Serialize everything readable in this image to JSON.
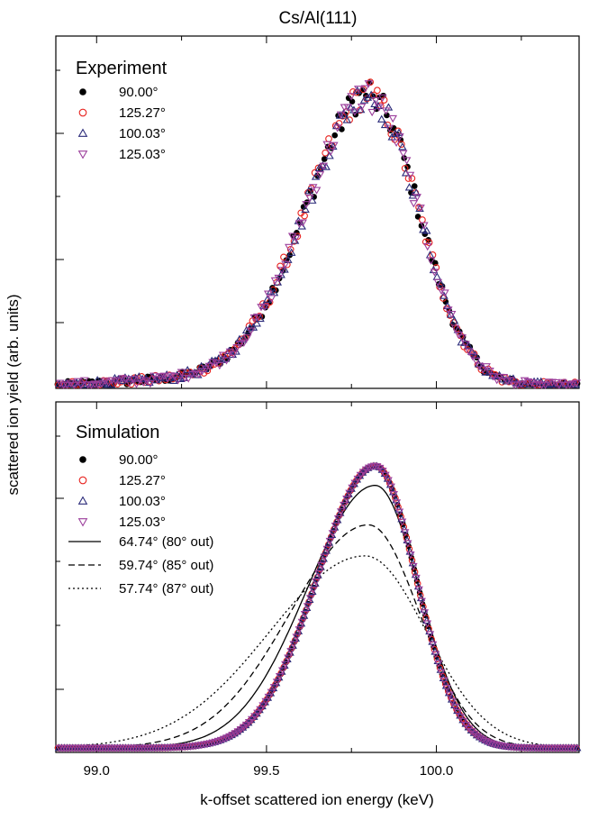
{
  "figure": {
    "title": "Cs/Al(111)",
    "ylabel": "scattered ion yield (arb. units)",
    "xlabel": "k-offset scattered ion energy (keV)"
  },
  "colors": {
    "black": "#000000",
    "red": "#e8231f",
    "navy": "#2b2b7a",
    "purple": "#9c3f9c"
  },
  "chart_data": [
    {
      "type": "scatter",
      "panel": "Experiment",
      "xlim": [
        98.88,
        100.42
      ],
      "ylim": [
        0,
        1.23
      ],
      "xticks": [
        99.0,
        99.5,
        100.0
      ],
      "grid": false,
      "legend": "top-left",
      "series": [
        {
          "name": "90.00°",
          "marker": "filled-circle",
          "color": "#000000"
        },
        {
          "name": "125.27°",
          "marker": "open-circle",
          "color": "#e8231f"
        },
        {
          "name": "100.03°",
          "marker": "open-triangle-up",
          "color": "#2b2b7a"
        },
        {
          "name": "125.03°",
          "marker": "open-triangle-down",
          "color": "#9c3f9c"
        }
      ],
      "peak_model": {
        "center": 99.81,
        "height": 1.0,
        "sigma_left": 0.19,
        "sigma_right": 0.14,
        "tail": 0.04
      }
    },
    {
      "type": "line",
      "panel": "Simulation",
      "xlim": [
        98.88,
        100.42
      ],
      "ylim": [
        0,
        1.23
      ],
      "xticks": [
        99.0,
        99.5,
        100.0
      ],
      "xticklabels": [
        "99.0",
        "99.5",
        "100.0"
      ],
      "grid": false,
      "legend": "top-left",
      "series": [
        {
          "name": "90.00°",
          "marker": "filled-circle",
          "color": "#000000",
          "center": 99.82,
          "height": 1.0,
          "sigma_left": 0.17,
          "sigma_right": 0.12
        },
        {
          "name": "125.27°",
          "marker": "open-circle",
          "color": "#e8231f",
          "center": 99.82,
          "height": 1.0,
          "sigma_left": 0.17,
          "sigma_right": 0.12
        },
        {
          "name": "100.03°",
          "marker": "open-triangle-up",
          "color": "#2b2b7a",
          "center": 99.82,
          "height": 1.0,
          "sigma_left": 0.17,
          "sigma_right": 0.12
        },
        {
          "name": "125.03°",
          "marker": "open-triangle-down",
          "color": "#9c3f9c",
          "center": 99.82,
          "height": 1.0,
          "sigma_left": 0.17,
          "sigma_right": 0.12
        },
        {
          "name": "64.74° (80° out)",
          "line": "solid",
          "color": "#000000",
          "center": 99.82,
          "height": 0.93,
          "sigma_left": 0.2,
          "sigma_right": 0.13
        },
        {
          "name": "59.74° (85° out)",
          "line": "dashed",
          "color": "#000000",
          "center": 99.8,
          "height": 0.79,
          "sigma_left": 0.23,
          "sigma_right": 0.15
        },
        {
          "name": "57.74° (87° out)",
          "line": "dotted",
          "color": "#000000",
          "center": 99.79,
          "height": 0.68,
          "sigma_left": 0.28,
          "sigma_right": 0.18
        }
      ]
    }
  ]
}
